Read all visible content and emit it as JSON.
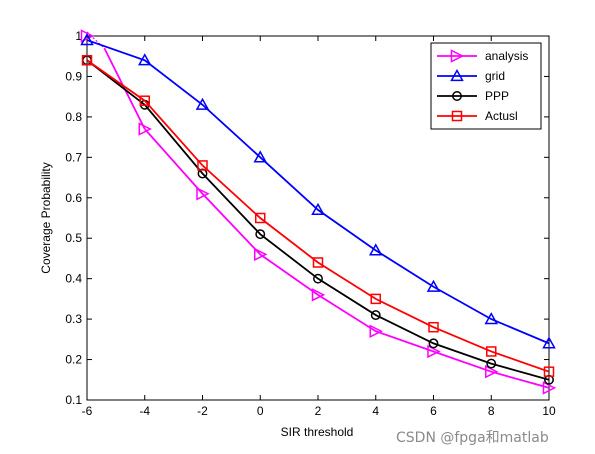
{
  "chart_data": {
    "type": "line",
    "title": "",
    "xlabel": "SIR threshold",
    "ylabel": "Coverage Probability",
    "xlim": [
      -6,
      10
    ],
    "ylim": [
      0.1,
      1
    ],
    "xticks": [
      -6,
      -4,
      -2,
      0,
      2,
      4,
      6,
      8,
      10
    ],
    "yticks": [
      0.1,
      0.2,
      0.3,
      0.4,
      0.5,
      0.6,
      0.7,
      0.8,
      0.9,
      1
    ],
    "grid": false,
    "legend_position": "top-right",
    "x": [
      -6,
      -4,
      -2,
      0,
      2,
      4,
      6,
      8,
      10
    ],
    "series": [
      {
        "name": "analysis",
        "color": "#ff00ff",
        "marker": "triangle-right",
        "values": [
          1.0,
          0.77,
          0.61,
          0.46,
          0.36,
          0.27,
          0.22,
          0.17,
          0.13
        ],
        "extra_start_point": [
          -5.4,
          0.97
        ],
        "note_line": "dotted"
      },
      {
        "name": "grid",
        "color": "#0000ff",
        "marker": "triangle-up",
        "values": [
          0.99,
          0.94,
          0.83,
          0.7,
          0.57,
          0.47,
          0.38,
          0.3,
          0.24
        ]
      },
      {
        "name": "PPP",
        "color": "#000000",
        "marker": "circle",
        "values": [
          0.94,
          0.83,
          0.66,
          0.51,
          0.4,
          0.31,
          0.24,
          0.19,
          0.15
        ]
      },
      {
        "name": "Actusl",
        "color": "#ff0000",
        "marker": "square",
        "values": [
          0.94,
          0.84,
          0.68,
          0.55,
          0.44,
          0.35,
          0.28,
          0.22,
          0.17
        ]
      }
    ]
  },
  "watermark": "CSDN @fpga和matlab"
}
